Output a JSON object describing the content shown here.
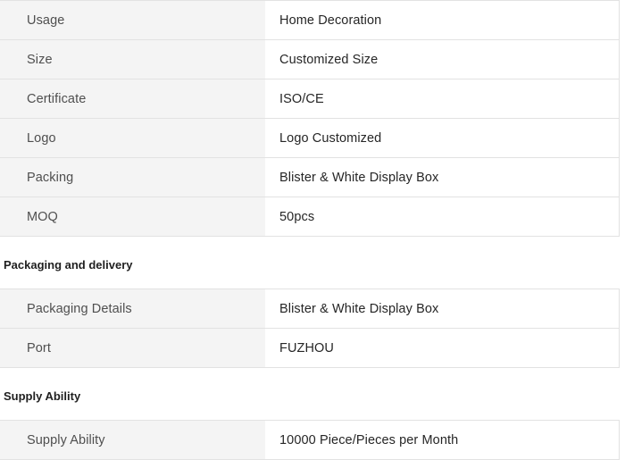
{
  "colors": {
    "label_cell_bg": "#f4f4f4",
    "value_cell_bg": "#ffffff",
    "border": "#e2e2e2",
    "label_text": "#4f4f4f",
    "value_text": "#262626",
    "heading_text": "#1f1f1f"
  },
  "sections": [
    {
      "heading": "",
      "rows": [
        {
          "label": "Usage",
          "value": "Home Decoration"
        },
        {
          "label": "Size",
          "value": "Customized Size"
        },
        {
          "label": "Certificate",
          "value": "ISO/CE"
        },
        {
          "label": "Logo",
          "value": "Logo Customized"
        },
        {
          "label": "Packing",
          "value": "Blister & White Display Box"
        },
        {
          "label": "MOQ",
          "value": "50pcs"
        }
      ]
    },
    {
      "heading": "Packaging and delivery",
      "rows": [
        {
          "label": "Packaging Details",
          "value": "Blister & White Display Box"
        },
        {
          "label": "Port",
          "value": "FUZHOU"
        }
      ]
    },
    {
      "heading": "Supply Ability",
      "rows": [
        {
          "label": "Supply Ability",
          "value": "10000 Piece/Pieces per Month"
        }
      ]
    }
  ]
}
